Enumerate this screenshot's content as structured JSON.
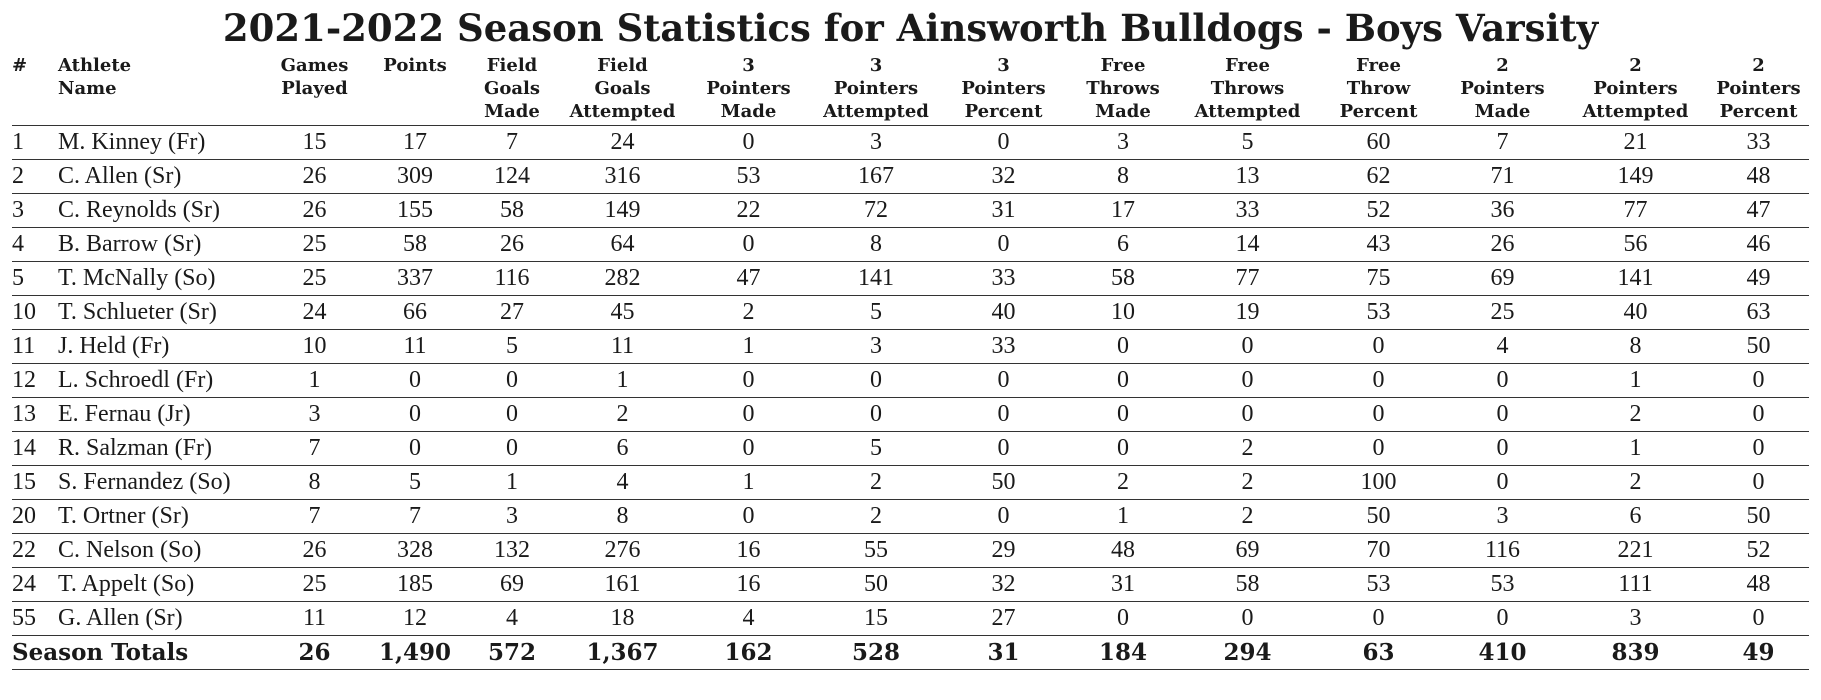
{
  "title": "2021-2022 Season Statistics for Ainsworth Bulldogs - Boys Varsity",
  "columns": [
    [
      "#"
    ],
    [
      "Athlete",
      "Name"
    ],
    [
      "Games",
      "Played"
    ],
    [
      "Points"
    ],
    [
      "Field",
      "Goals",
      "Made"
    ],
    [
      "Field",
      "Goals",
      "Attempted"
    ],
    [
      "3",
      "Pointers",
      "Made"
    ],
    [
      "3",
      "Pointers",
      "Attempted"
    ],
    [
      "3",
      "Pointers",
      "Percent"
    ],
    [
      "Free",
      "Throws",
      "Made"
    ],
    [
      "Free",
      "Throws",
      "Attempted"
    ],
    [
      "Free",
      "Throw",
      "Percent"
    ],
    [
      "2",
      "Pointers",
      "Made"
    ],
    [
      "2",
      "Pointers",
      "Attempted"
    ],
    [
      "2",
      "Pointers",
      "Percent"
    ]
  ],
  "rows": [
    [
      "1",
      "M. Kinney (Fr)",
      "15",
      "17",
      "7",
      "24",
      "0",
      "3",
      "0",
      "3",
      "5",
      "60",
      "7",
      "21",
      "33"
    ],
    [
      "2",
      "C. Allen (Sr)",
      "26",
      "309",
      "124",
      "316",
      "53",
      "167",
      "32",
      "8",
      "13",
      "62",
      "71",
      "149",
      "48"
    ],
    [
      "3",
      "C. Reynolds (Sr)",
      "26",
      "155",
      "58",
      "149",
      "22",
      "72",
      "31",
      "17",
      "33",
      "52",
      "36",
      "77",
      "47"
    ],
    [
      "4",
      "B. Barrow (Sr)",
      "25",
      "58",
      "26",
      "64",
      "0",
      "8",
      "0",
      "6",
      "14",
      "43",
      "26",
      "56",
      "46"
    ],
    [
      "5",
      "T. McNally (So)",
      "25",
      "337",
      "116",
      "282",
      "47",
      "141",
      "33",
      "58",
      "77",
      "75",
      "69",
      "141",
      "49"
    ],
    [
      "10",
      "T. Schlueter (Sr)",
      "24",
      "66",
      "27",
      "45",
      "2",
      "5",
      "40",
      "10",
      "19",
      "53",
      "25",
      "40",
      "63"
    ],
    [
      "11",
      "J. Held (Fr)",
      "10",
      "11",
      "5",
      "11",
      "1",
      "3",
      "33",
      "0",
      "0",
      "0",
      "4",
      "8",
      "50"
    ],
    [
      "12",
      "L. Schroedl (Fr)",
      "1",
      "0",
      "0",
      "1",
      "0",
      "0",
      "0",
      "0",
      "0",
      "0",
      "0",
      "1",
      "0"
    ],
    [
      "13",
      "E. Fernau (Jr)",
      "3",
      "0",
      "0",
      "2",
      "0",
      "0",
      "0",
      "0",
      "0",
      "0",
      "0",
      "2",
      "0"
    ],
    [
      "14",
      "R. Salzman (Fr)",
      "7",
      "0",
      "0",
      "6",
      "0",
      "5",
      "0",
      "0",
      "2",
      "0",
      "0",
      "1",
      "0"
    ],
    [
      "15",
      "S. Fernandez (So)",
      "8",
      "5",
      "1",
      "4",
      "1",
      "2",
      "50",
      "2",
      "2",
      "100",
      "0",
      "2",
      "0"
    ],
    [
      "20",
      "T. Ortner (Sr)",
      "7",
      "7",
      "3",
      "8",
      "0",
      "2",
      "0",
      "1",
      "2",
      "50",
      "3",
      "6",
      "50"
    ],
    [
      "22",
      "C. Nelson (So)",
      "26",
      "328",
      "132",
      "276",
      "16",
      "55",
      "29",
      "48",
      "69",
      "70",
      "116",
      "221",
      "52"
    ],
    [
      "24",
      "T. Appelt (So)",
      "25",
      "185",
      "69",
      "161",
      "16",
      "50",
      "32",
      "31",
      "58",
      "53",
      "53",
      "111",
      "48"
    ],
    [
      "55",
      "G. Allen (Sr)",
      "11",
      "12",
      "4",
      "18",
      "4",
      "15",
      "27",
      "0",
      "0",
      "0",
      "0",
      "3",
      "0"
    ]
  ],
  "totals": {
    "label": "Season Totals",
    "values": [
      "26",
      "1,490",
      "572",
      "1,367",
      "162",
      "528",
      "31",
      "184",
      "294",
      "63",
      "410",
      "839",
      "49"
    ]
  }
}
